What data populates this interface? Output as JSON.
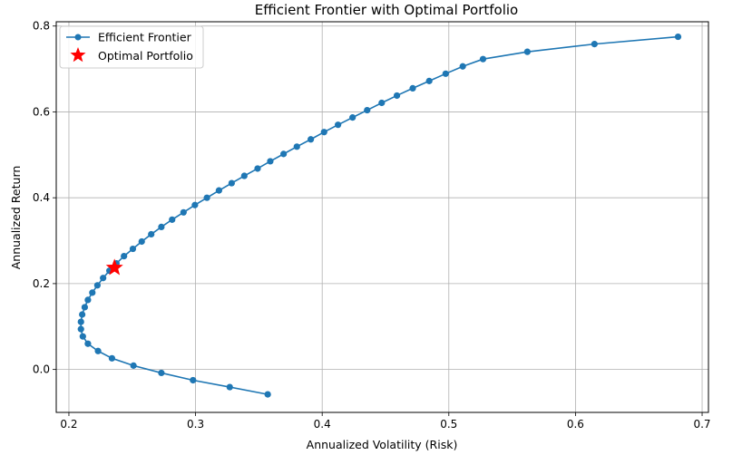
{
  "chart_data": {
    "type": "line",
    "title": "Efficient Frontier with Optimal Portfolio",
    "xlabel": "Annualized Volatility (Risk)",
    "ylabel": "Annualized Return",
    "xlim": [
      0.19,
      0.705
    ],
    "ylim": [
      -0.1,
      0.81
    ],
    "xticks": [
      0.2,
      0.3,
      0.4,
      0.5,
      0.6,
      0.7
    ],
    "xtick_labels": [
      "0.2",
      "0.3",
      "0.4",
      "0.5",
      "0.6",
      "0.7"
    ],
    "yticks": [
      0.0,
      0.2,
      0.4,
      0.6,
      0.8
    ],
    "ytick_labels": [
      "0.0",
      "0.2",
      "0.4",
      "0.6",
      "0.8"
    ],
    "grid": true,
    "legend_position": "top-left",
    "series": [
      {
        "name": "Efficient Frontier",
        "color": "#1f77b4",
        "marker": "circle",
        "x": [
          0.357,
          0.327,
          0.298,
          0.273,
          0.251,
          0.234,
          0.223,
          0.215,
          0.211,
          0.2095,
          0.2095,
          0.2105,
          0.2125,
          0.215,
          0.2185,
          0.2225,
          0.227,
          0.232,
          0.2375,
          0.2435,
          0.2505,
          0.2575,
          0.265,
          0.273,
          0.2815,
          0.2905,
          0.2995,
          0.309,
          0.3185,
          0.3285,
          0.3385,
          0.349,
          0.359,
          0.3695,
          0.38,
          0.391,
          0.4015,
          0.4125,
          0.424,
          0.4355,
          0.447,
          0.459,
          0.4715,
          0.4845,
          0.4975,
          0.511,
          0.527,
          0.562,
          0.615,
          0.681
        ],
        "y": [
          -0.058,
          -0.041,
          -0.025,
          -0.008,
          0.009,
          0.026,
          0.043,
          0.06,
          0.077,
          0.094,
          0.111,
          0.128,
          0.145,
          0.162,
          0.179,
          0.196,
          0.213,
          0.23,
          0.247,
          0.264,
          0.281,
          0.298,
          0.315,
          0.332,
          0.349,
          0.366,
          0.383,
          0.4,
          0.417,
          0.434,
          0.451,
          0.468,
          0.485,
          0.502,
          0.519,
          0.536,
          0.553,
          0.57,
          0.587,
          0.604,
          0.621,
          0.638,
          0.655,
          0.672,
          0.689,
          0.706,
          0.723,
          0.74,
          0.758,
          0.775
        ]
      },
      {
        "name": "Optimal Portfolio",
        "color": "#ff0000",
        "marker": "star",
        "x": [
          0.236
        ],
        "y": [
          0.237
        ]
      }
    ]
  }
}
